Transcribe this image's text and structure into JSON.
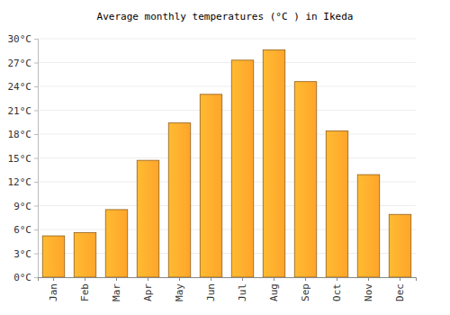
{
  "chart_data": {
    "type": "bar",
    "title": "Average monthly temperatures (°C ) in Ikeda",
    "categories": [
      "Jan",
      "Feb",
      "Mar",
      "Apr",
      "May",
      "Jun",
      "Jul",
      "Aug",
      "Sep",
      "Oct",
      "Nov",
      "Dec"
    ],
    "values": [
      5.2,
      5.6,
      8.5,
      14.7,
      19.4,
      23.0,
      27.3,
      28.6,
      24.6,
      18.4,
      12.9,
      7.9
    ],
    "color": "#ffa52b",
    "ylim": [
      0,
      30
    ],
    "yticks": [
      {
        "value": 0,
        "label": "0°C"
      },
      {
        "value": 3,
        "label": "3°C"
      },
      {
        "value": 6,
        "label": "6°C"
      },
      {
        "value": 9,
        "label": "9°C"
      },
      {
        "value": 12,
        "label": "12°C"
      },
      {
        "value": 15,
        "label": "15°C"
      },
      {
        "value": 18,
        "label": "18°C"
      },
      {
        "value": 21,
        "label": "21°C"
      },
      {
        "value": 24,
        "label": "24°C"
      },
      {
        "value": 27,
        "label": "27°C"
      },
      {
        "value": 30,
        "label": "30°C"
      }
    ],
    "grid": true
  }
}
